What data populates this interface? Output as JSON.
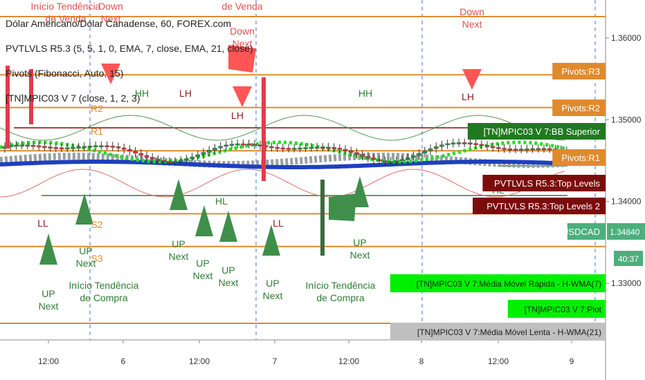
{
  "header": {
    "symbol_line": "Dólar Americano/Dólar Canadense, 60, FOREX.com",
    "indicator_1": "PVTLVLS R5.3 (5, 5, 1, 0, EMA, 7, close, EMA, 21, close)",
    "indicator_2": "Pivots (Fibonacci, Auto, 15)",
    "indicator_3": "[TN]MPIC03 V 7 (close, 1, 2, 3)"
  },
  "y_axis": {
    "ticks": [
      "1.36000",
      "1.35000",
      "1.34000",
      "1.33000"
    ],
    "price_tag": "1.34840",
    "countdown": "40:37"
  },
  "x_axis": {
    "ticks": [
      "12:00",
      "6",
      "12:00",
      "7",
      "12:00",
      "8",
      "12:00",
      "9"
    ]
  },
  "right_tags": [
    {
      "text": "Pivots:R3",
      "color": "#e08a2e"
    },
    {
      "text": "Pivots:R2",
      "color": "#e08a2e"
    },
    {
      "text": "[TN]MPIC03 V 7:BB Superior",
      "color": "#1f7a1f"
    },
    {
      "text": "Pivots:R1",
      "color": "#e08a2e"
    },
    {
      "text": "PVTLVLS R5.3:Top Levels",
      "color": "#7b0c0c"
    },
    {
      "text": "PVTLVLS R5.3:Top Levels 2",
      "color": "#7b0c0c"
    },
    {
      "text": "USDCAD",
      "color": "#4caf7d"
    }
  ],
  "bottom_tags": [
    {
      "text": "[TN]MPIC03 V 7:Média Móvel Rápida - H-WMA(7)",
      "color": "#00f000",
      "fg": "#103010"
    },
    {
      "text": "[TN]MPIC03 V 7:Plot",
      "color": "#00f000",
      "fg": "#103010"
    },
    {
      "text": "[TN]MPIC03 V 7:Média Móvel Lenta - H-WMA(21)",
      "color": "#c0c0c0",
      "fg": "#202020"
    }
  ],
  "chart_data": {
    "type": "candlestick",
    "pivot_levels": [
      {
        "name": "R3",
        "value": 1.3555
      },
      {
        "name": "R2",
        "value": 1.3515
      },
      {
        "name": "R1",
        "value": 1.3462
      },
      {
        "name": "S2",
        "value": 1.3385
      },
      {
        "name": "S3",
        "value": 1.3345
      }
    ],
    "current_price": 1.3484,
    "ylim": [
      1.325,
      1.364
    ],
    "annotations": [
      {
        "text": "Início Tendência de Venda",
        "color": "#e05050"
      },
      {
        "text": "Down Next",
        "color": "#e05050"
      },
      {
        "text": "de Venda",
        "color": "#e05050"
      },
      {
        "text": "Down Next",
        "color": "#e05050"
      },
      {
        "text": "Down Next",
        "color": "#e05050"
      },
      {
        "text": "HH",
        "color": "#2e7d32"
      },
      {
        "text": "LH",
        "color": "#8b1a1a"
      },
      {
        "text": "LH",
        "color": "#8b1a1a"
      },
      {
        "text": "HH",
        "color": "#2e7d32"
      },
      {
        "text": "LH",
        "color": "#8b1a1a"
      },
      {
        "text": "HL",
        "color": "#2e7d32"
      },
      {
        "text": "HL",
        "color": "#2e7d32"
      },
      {
        "text": "LL",
        "color": "#8b1a1a"
      },
      {
        "text": "LL",
        "color": "#8b1a1a"
      },
      {
        "text": "R2",
        "color": "#e08a2e"
      },
      {
        "text": "R1",
        "color": "#e08a2e"
      },
      {
        "text": "S2",
        "color": "#e08a2e"
      },
      {
        "text": "S3",
        "color": "#e08a2e"
      },
      {
        "text": "UP Next",
        "color": "#2e7d32"
      },
      {
        "text": "UP Next",
        "color": "#2e7d32"
      },
      {
        "text": "UP Next",
        "color": "#2e7d32"
      },
      {
        "text": "UP Next",
        "color": "#2e7d32"
      },
      {
        "text": "UP Next",
        "color": "#2e7d32"
      },
      {
        "text": "UP Next",
        "color": "#2e7d32"
      },
      {
        "text": "UP Next",
        "color": "#2e7d32"
      },
      {
        "text": "Início Tendência de Compra",
        "color": "#2e7d32"
      },
      {
        "text": "Início Tendência de Compra",
        "color": "#2e7d32"
      }
    ],
    "colors": {
      "pivot": "#e08a2e",
      "bull": "#2e9e4a",
      "bear": "#e23b4b",
      "fast_ma": "#22dd22",
      "slow_ma": "#9aa0a0",
      "base_ma": "#1f3fbf"
    }
  }
}
